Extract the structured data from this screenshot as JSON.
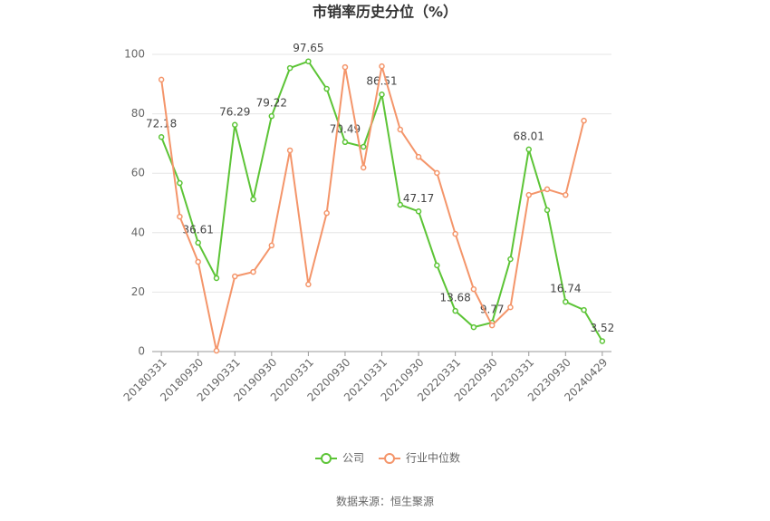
{
  "chart_data": {
    "type": "line",
    "title": "市销率历史分位（%）",
    "categories": [
      "20180331",
      null,
      "20180930",
      null,
      "20190331",
      null,
      "20190930",
      null,
      "20200331",
      null,
      "20200930",
      null,
      "20210331",
      null,
      "20210930",
      null,
      "20220331",
      null,
      "20220930",
      null,
      "20230331",
      null,
      "20230930",
      null,
      "20240429"
    ],
    "series": [
      {
        "name": "公司",
        "color": "#5cc436",
        "values": [
          72.18,
          56.7,
          36.61,
          24.7,
          76.29,
          51.2,
          79.22,
          95.4,
          97.65,
          88.4,
          70.49,
          68.9,
          86.51,
          49.4,
          47.17,
          29.0,
          13.68,
          8.2,
          9.77,
          31.1,
          68.01,
          47.6,
          16.74,
          14.0,
          3.52
        ],
        "value_labels": [
          "72.18",
          null,
          "36.61",
          null,
          "76.29",
          null,
          "79.22",
          null,
          "97.65",
          null,
          "70.49",
          null,
          "86.51",
          null,
          "47.17",
          null,
          "13.68",
          null,
          "9.77",
          null,
          "68.01",
          null,
          "16.74",
          null,
          "3.52"
        ]
      },
      {
        "name": "行业中位数",
        "color": "#f4956a",
        "values": [
          91.5,
          45.4,
          30.2,
          0.3,
          25.3,
          26.8,
          35.7,
          67.7,
          22.6,
          46.6,
          95.7,
          61.9,
          96.0,
          74.7,
          65.5,
          60.1,
          39.6,
          21.0,
          8.8,
          14.9,
          52.7,
          54.6,
          52.7,
          77.7,
          null
        ]
      }
    ],
    "ylim": [
      0,
      100
    ],
    "yticks": [
      0,
      20,
      40,
      60,
      80,
      100
    ],
    "grid": true,
    "source": "数据来源：恒生聚源"
  }
}
